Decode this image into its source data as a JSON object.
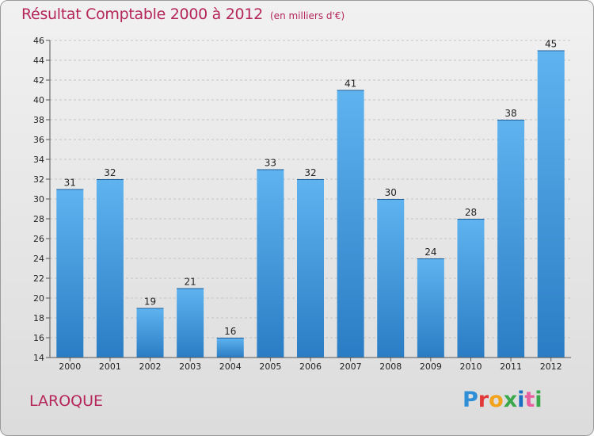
{
  "chart_data": {
    "type": "bar",
    "title": "Résultat Comptable 2000 à 2012",
    "subtitle": "(en milliers d'€)",
    "xlabel": "",
    "ylabel": "",
    "categories": [
      "2000",
      "2001",
      "2002",
      "2003",
      "2004",
      "2005",
      "2006",
      "2007",
      "2008",
      "2009",
      "2010",
      "2011",
      "2012"
    ],
    "values": [
      31,
      32,
      19,
      21,
      16,
      33,
      32,
      41,
      30,
      24,
      28,
      38,
      45
    ],
    "ylim": [
      14,
      46
    ],
    "yticks": [
      14,
      16,
      18,
      20,
      22,
      24,
      26,
      28,
      30,
      32,
      34,
      36,
      38,
      40,
      42,
      44,
      46
    ],
    "grid": true,
    "legend": "none",
    "bar_color": "#3d97dc"
  },
  "commune_label": "LAROQUE",
  "logo": {
    "letters": [
      "P",
      "r",
      "o",
      "x",
      "i",
      "t",
      "i"
    ]
  }
}
